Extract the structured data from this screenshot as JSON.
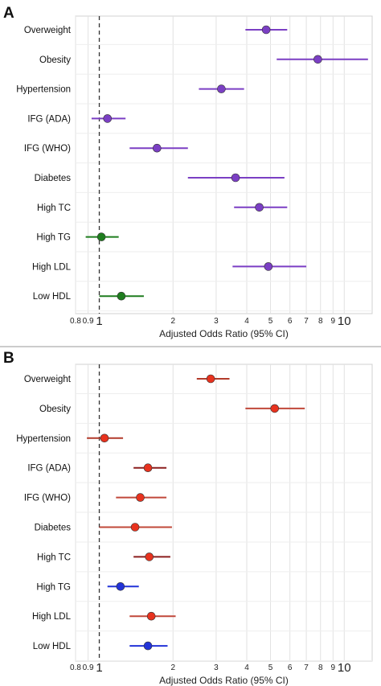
{
  "chart_data": [
    {
      "type": "scatter",
      "panel_letter": "A",
      "xlabel": "Adjusted Odds Ratio (95% CI)",
      "xscale": "log",
      "xlim": [
        0.8,
        13
      ],
      "x_ticks": [
        {
          "value": 0.8,
          "label": "0.8"
        },
        {
          "value": 0.9,
          "label": "0.9"
        },
        {
          "value": 1,
          "label": "1"
        },
        {
          "value": 2,
          "label": "2"
        },
        {
          "value": 3,
          "label": "3"
        },
        {
          "value": 4,
          "label": "4"
        },
        {
          "value": 5,
          "label": "5"
        },
        {
          "value": 6,
          "label": "6"
        },
        {
          "value": 7,
          "label": "7"
        },
        {
          "value": 8,
          "label": "8"
        },
        {
          "value": 9,
          "label": "9"
        },
        {
          "value": 10,
          "label": "10"
        }
      ],
      "reference_line": 1,
      "grid": true,
      "categories": [
        "Overweight",
        "Obesity",
        "Hypertension",
        "IFG (ADA)",
        "IFG (WHO)",
        "Diabetes",
        "High TC",
        "High TG",
        "High LDL",
        "Low HDL"
      ],
      "points": [
        {
          "or": 4.8,
          "lo": 3.95,
          "hi": 5.85,
          "color": "#7b3fc4"
        },
        {
          "or": 7.8,
          "lo": 5.3,
          "hi": 12.5,
          "color": "#7b3fc4"
        },
        {
          "or": 3.15,
          "lo": 2.55,
          "hi": 3.9,
          "color": "#7b3fc4"
        },
        {
          "or": 1.08,
          "lo": 0.93,
          "hi": 1.28,
          "color": "#7b3fc4"
        },
        {
          "or": 1.72,
          "lo": 1.33,
          "hi": 2.3,
          "color": "#7b3fc4"
        },
        {
          "or": 3.6,
          "lo": 2.3,
          "hi": 5.7,
          "color": "#7b3fc4"
        },
        {
          "or": 4.5,
          "lo": 3.55,
          "hi": 5.85,
          "color": "#7b3fc4"
        },
        {
          "or": 1.02,
          "lo": 0.88,
          "hi": 1.2,
          "color": "#1e7d1e"
        },
        {
          "or": 4.9,
          "lo": 3.5,
          "hi": 7.0,
          "color": "#7b3fc4"
        },
        {
          "or": 1.23,
          "lo": 1.0,
          "hi": 1.52,
          "color": "#1e7d1e"
        }
      ]
    },
    {
      "type": "scatter",
      "panel_letter": "B",
      "xlabel": "Adjusted Odds Ratio (95% CI)",
      "xscale": "log",
      "xlim": [
        0.8,
        13
      ],
      "x_ticks": [
        {
          "value": 0.8,
          "label": "0.8"
        },
        {
          "value": 0.9,
          "label": "0.9"
        },
        {
          "value": 1,
          "label": "1"
        },
        {
          "value": 2,
          "label": "2"
        },
        {
          "value": 3,
          "label": "3"
        },
        {
          "value": 4,
          "label": "4"
        },
        {
          "value": 5,
          "label": "5"
        },
        {
          "value": 6,
          "label": "6"
        },
        {
          "value": 7,
          "label": "7"
        },
        {
          "value": 8,
          "label": "8"
        },
        {
          "value": 9,
          "label": "9"
        },
        {
          "value": 10,
          "label": "10"
        }
      ],
      "reference_line": 1,
      "grid": true,
      "categories": [
        "Overweight",
        "Obesity",
        "Hypertension",
        "IFG (ADA)",
        "IFG (WHO)",
        "Diabetes",
        "High TC",
        "High TG",
        "High LDL",
        "Low HDL"
      ],
      "points": [
        {
          "or": 2.85,
          "lo": 2.5,
          "hi": 3.4,
          "color": "#e8321e",
          "ci_color": "#b23a2a"
        },
        {
          "or": 5.2,
          "lo": 3.95,
          "hi": 6.9,
          "color": "#e8321e",
          "ci_color": "#c0483a"
        },
        {
          "or": 1.05,
          "lo": 0.89,
          "hi": 1.25,
          "color": "#e8321e",
          "ci_color": "#b23a2a"
        },
        {
          "or": 1.58,
          "lo": 1.38,
          "hi": 1.88,
          "color": "#e8321e",
          "ci_color": "#8b1e1e"
        },
        {
          "or": 1.47,
          "lo": 1.17,
          "hi": 1.88,
          "color": "#e8321e",
          "ci_color": "#c0483a"
        },
        {
          "or": 1.4,
          "lo": 1.0,
          "hi": 1.98,
          "color": "#e8321e",
          "ci_color": "#c0483a"
        },
        {
          "or": 1.6,
          "lo": 1.38,
          "hi": 1.95,
          "color": "#e8321e",
          "ci_color": "#8b1e1e"
        },
        {
          "or": 1.22,
          "lo": 1.08,
          "hi": 1.45,
          "color": "#2233d8",
          "ci_color": "#2233d8"
        },
        {
          "or": 1.63,
          "lo": 1.33,
          "hi": 2.05,
          "color": "#e8321e",
          "ci_color": "#c0483a"
        },
        {
          "or": 1.58,
          "lo": 1.33,
          "hi": 1.9,
          "color": "#2233d8",
          "ci_color": "#2233d8"
        }
      ]
    }
  ]
}
